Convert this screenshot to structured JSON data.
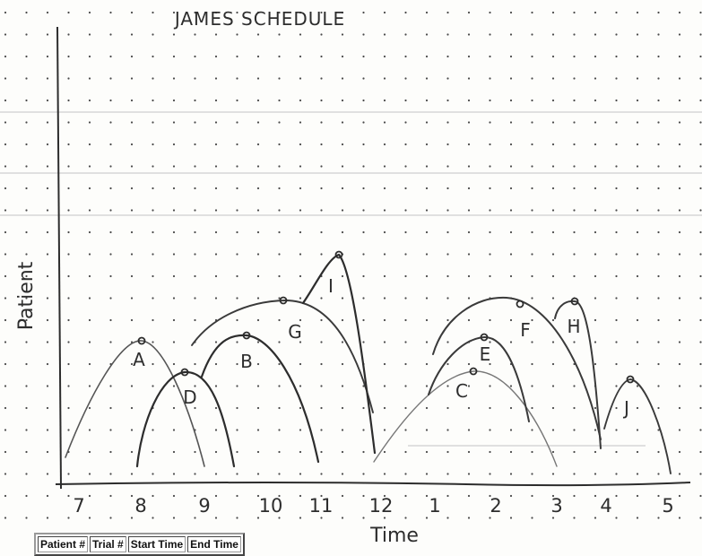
{
  "title": "JAMES SCHEDULE",
  "axes": {
    "ylabel": "Patient",
    "xlabel": "Time",
    "ticks": [
      "7",
      "8",
      "9",
      "10",
      "11",
      "12",
      "1",
      "2",
      "3",
      "4",
      "5"
    ]
  },
  "arcs": [
    {
      "label": "A"
    },
    {
      "label": "B"
    },
    {
      "label": "C"
    },
    {
      "label": "D"
    },
    {
      "label": "E"
    },
    {
      "label": "F"
    },
    {
      "label": "G"
    },
    {
      "label": "H"
    },
    {
      "label": "I"
    },
    {
      "label": "J"
    }
  ],
  "table": {
    "headers": [
      "Patient #",
      "Trial #",
      "Start Time",
      "End Time"
    ]
  },
  "colors": {
    "ink": "#2d2d2d",
    "dot": "#4a4a4a",
    "rule": "#cfcfcf"
  }
}
